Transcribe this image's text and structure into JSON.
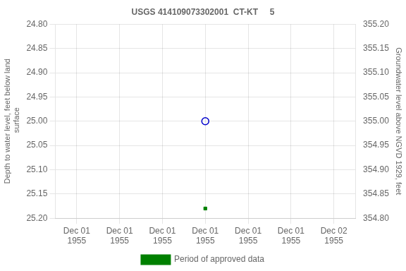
{
  "chart_data": {
    "type": "scatter",
    "title": "USGS 414109073302001  CT-KT     5",
    "ylabel": "Depth to water level, feet below land\n surface",
    "y2label": "Groundwater level above NGVD 1929, feet",
    "categories": [
      "Dec 01\n1955",
      "Dec 01\n1955",
      "Dec 01\n1955",
      "Dec 01\n1955",
      "Dec 01\n1955",
      "Dec 01\n1955",
      "Dec 02\n1955"
    ],
    "series": [
      {
        "color": "#0000cc",
        "marker": "circle_open",
        "values": [
          null,
          null,
          null,
          25.0,
          null,
          null,
          null
        ]
      },
      {
        "name": "Period of approved data",
        "color": "#008000",
        "marker": "square",
        "values": [
          null,
          null,
          null,
          25.18,
          null,
          null,
          null
        ]
      }
    ],
    "ylim": [
      25.2,
      24.8
    ],
    "yticks": [
      {
        "value": 24.8,
        "label": "24.80"
      },
      {
        "value": 24.85,
        "label": "24.85"
      },
      {
        "value": 24.9,
        "label": "24.90"
      },
      {
        "value": 24.95,
        "label": "24.95"
      },
      {
        "value": 25.0,
        "label": "25.00"
      },
      {
        "value": 25.05,
        "label": "25.05"
      },
      {
        "value": 25.1,
        "label": "25.10"
      },
      {
        "value": 25.15,
        "label": "25.15"
      },
      {
        "value": 25.2,
        "label": "25.20"
      }
    ],
    "y2lim": [
      354.8,
      355.2
    ],
    "y2ticks": [
      {
        "value": 354.8,
        "label": "354.80"
      },
      {
        "value": 354.85,
        "label": "354.85"
      },
      {
        "value": 354.9,
        "label": "354.90"
      },
      {
        "value": 354.95,
        "label": "354.95"
      },
      {
        "value": 355.0,
        "label": "355.00"
      },
      {
        "value": 355.05,
        "label": "355.05"
      },
      {
        "value": 355.1,
        "label": "355.10"
      },
      {
        "value": 355.15,
        "label": "355.15"
      },
      {
        "value": 355.2,
        "label": "355.20"
      }
    ],
    "grid": true,
    "legend": "bottom"
  }
}
